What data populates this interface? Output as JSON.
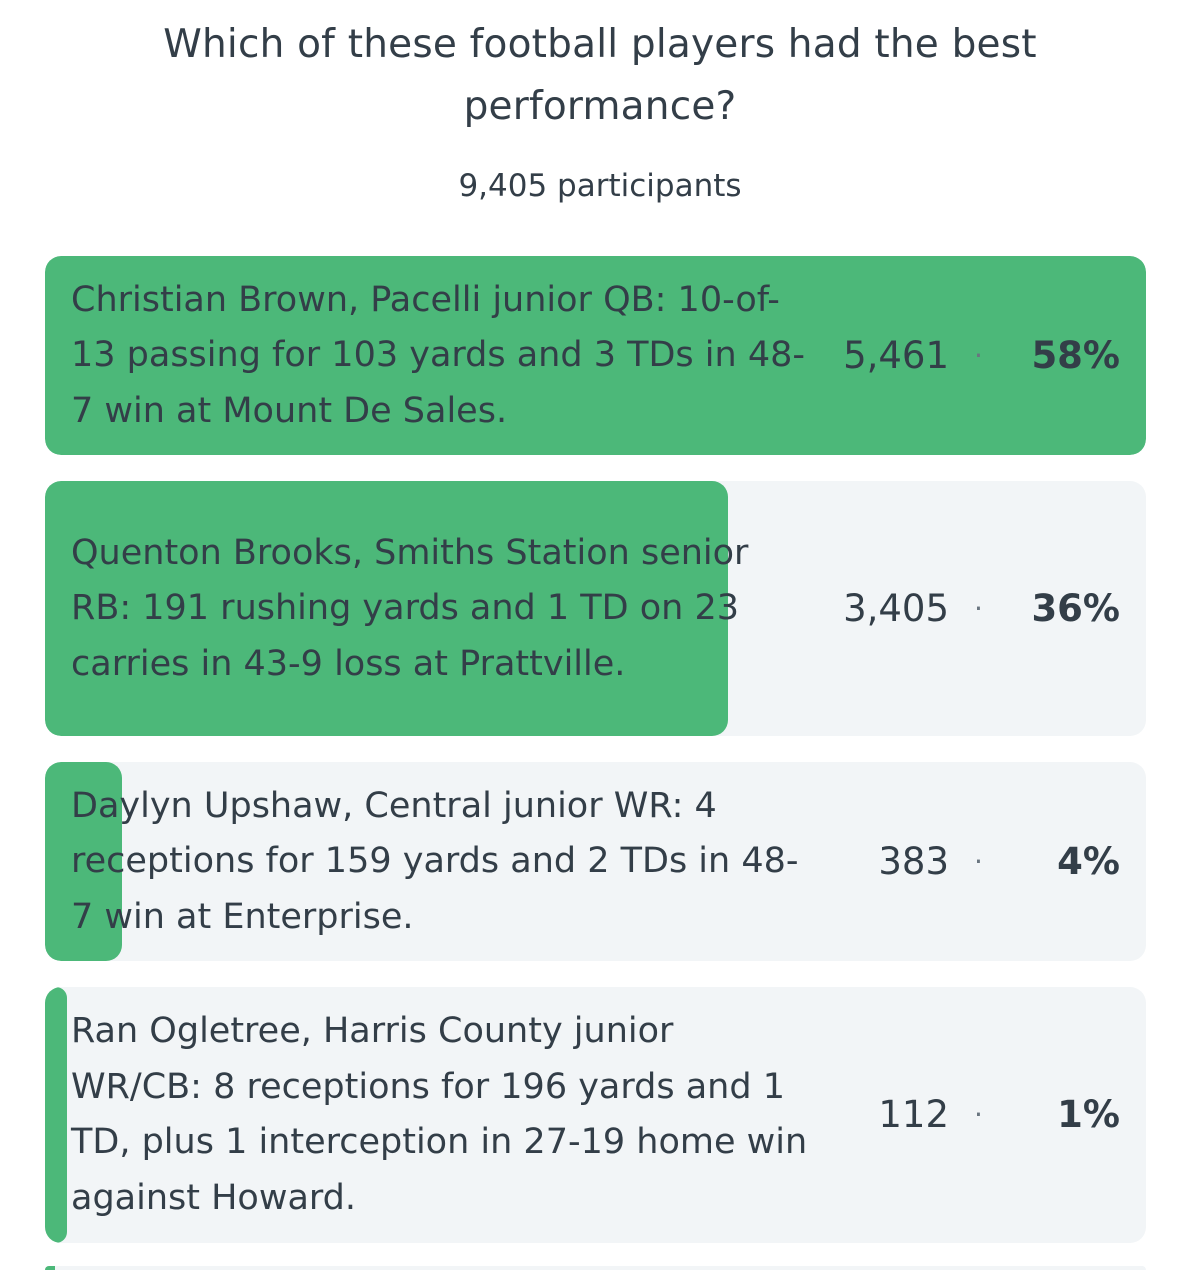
{
  "poll": {
    "question": "Which of these football players had the best performance?",
    "participants": "9,405 participants",
    "separator": "·",
    "colors": {
      "bar_fill": "#4cb879",
      "option_background": "#f2f5f7",
      "text": "#333e48"
    },
    "options": [
      {
        "label": "Christian Brown, Pacelli junior QB: 10-of-13 passing for 103 yards and 3 TDs in 48-7 win at Mount De Sales.",
        "votes": "5,461",
        "percent": "58%",
        "fill_fraction": 1.0
      },
      {
        "label": "Quenton Brooks, Smiths Station senior RB: 191 rushing yards and 1 TD on 23 carries in 43-9 loss at Prattville.",
        "votes": "3,405",
        "percent": "36%",
        "fill_fraction": 0.62
      },
      {
        "label": "Daylyn Upshaw, Central junior WR: 4 receptions for 159 yards and 2 TDs in 48-7 win at Enterprise.",
        "votes": "383",
        "percent": "4%",
        "fill_fraction": 0.07
      },
      {
        "label": "Ran Ogletree, Harris County junior WR/CB: 8 receptions for 196 yards and 1 TD, plus 1 interception in 27-19 home win against Howard.",
        "votes": "112",
        "percent": "1%",
        "fill_fraction": 0.02
      }
    ]
  }
}
